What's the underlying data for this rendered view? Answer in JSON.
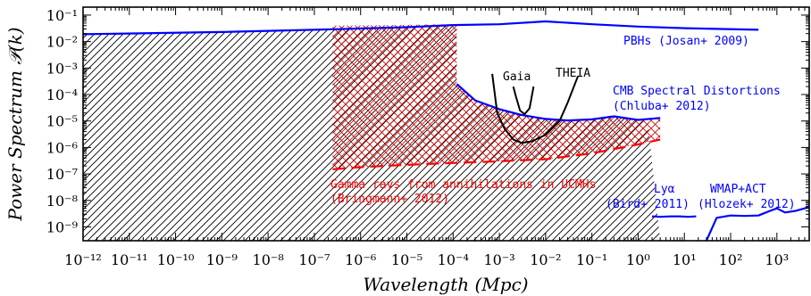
{
  "chart_data": {
    "type": "line",
    "title": "",
    "xlabel": "Wavelength (Mpc)",
    "ylabel": "Power Spectrum 𝒫(k)",
    "xscale": "log",
    "yscale": "log",
    "xlim": [
      1e-12,
      5000
    ],
    "ylim": [
      3e-10,
      0.2
    ],
    "grid": false,
    "x_ticks": [
      {
        "exp": -12,
        "label": "10⁻¹²"
      },
      {
        "exp": -11,
        "label": "10⁻¹¹"
      },
      {
        "exp": -10,
        "label": "10⁻¹⁰"
      },
      {
        "exp": -9,
        "label": "10⁻⁹"
      },
      {
        "exp": -8,
        "label": "10⁻⁸"
      },
      {
        "exp": -7,
        "label": "10⁻⁷"
      },
      {
        "exp": -6,
        "label": "10⁻⁶"
      },
      {
        "exp": -5,
        "label": "10⁻⁵"
      },
      {
        "exp": -4,
        "label": "10⁻⁴"
      },
      {
        "exp": -3,
        "label": "10⁻³"
      },
      {
        "exp": -2,
        "label": "10⁻²"
      },
      {
        "exp": -1,
        "label": "10⁻¹"
      },
      {
        "exp": 0,
        "label": "10⁰"
      },
      {
        "exp": 1,
        "label": "10¹"
      },
      {
        "exp": 2,
        "label": "10²"
      },
      {
        "exp": 3,
        "label": "10³"
      }
    ],
    "y_ticks": [
      {
        "exp": -1,
        "label": "10⁻¹"
      },
      {
        "exp": -2,
        "label": "10⁻²"
      },
      {
        "exp": -3,
        "label": "10⁻³"
      },
      {
        "exp": -4,
        "label": "10⁻⁴"
      },
      {
        "exp": -5,
        "label": "10⁻⁵"
      },
      {
        "exp": -6,
        "label": "10⁻⁶"
      },
      {
        "exp": -7,
        "label": "10⁻⁷"
      },
      {
        "exp": -8,
        "label": "10⁻⁸"
      },
      {
        "exp": -9,
        "label": "10⁻⁹"
      }
    ],
    "series": [
      {
        "name": "PBHs (Josan+ 2009)",
        "color": "#0000ff",
        "style": "solid",
        "x": [
          1e-12,
          1e-09,
          1e-07,
          1e-05,
          0.0001,
          0.001,
          0.01,
          0.1,
          1,
          10,
          400
        ],
        "y": [
          0.019,
          0.023,
          0.028,
          0.035,
          0.042,
          0.045,
          0.058,
          0.045,
          0.037,
          0.032,
          0.028
        ]
      },
      {
        "name": "CMB Spectral Distortions (Chluba+ 2012)",
        "color": "#0000ff",
        "style": "solid",
        "x": [
          0.00012,
          0.0003,
          0.001,
          0.003,
          0.01,
          0.03,
          0.1,
          0.3,
          1,
          3
        ],
        "y": [
          0.00025,
          6e-05,
          2.8e-05,
          1.7e-05,
          1.2e-05,
          1.05e-05,
          1.15e-05,
          1.5e-05,
          1.1e-05,
          1.3e-05
        ]
      },
      {
        "name": "Gamma rays from annihilations in UCMHs (Bringmann+ 2012)",
        "color": "#ff0000",
        "style": "dashed",
        "x": [
          2.5e-07,
          1e-06,
          1e-05,
          0.0001,
          0.001,
          0.01,
          0.1,
          1,
          3
        ],
        "y": [
          1.5e-07,
          1.8e-07,
          2.2e-07,
          2.6e-07,
          3e-07,
          3.6e-07,
          6e-07,
          1.3e-06,
          2e-06
        ]
      },
      {
        "name": "Gaia",
        "color": "#000000",
        "style": "solid",
        "x": [
          0.002,
          0.0023,
          0.0028,
          0.0035,
          0.0045,
          0.0055
        ],
        "y": [
          0.0002,
          8e-05,
          2.5e-05,
          1.8e-05,
          3e-05,
          0.0002
        ]
      },
      {
        "name": "THEIA",
        "color": "#000000",
        "style": "solid",
        "x": [
          0.0007,
          0.0009,
          0.0013,
          0.002,
          0.003,
          0.005,
          0.01,
          0.02,
          0.03,
          0.05
        ],
        "y": [
          0.0006,
          2e-05,
          5e-06,
          2e-06,
          1.5e-06,
          1.7e-06,
          3e-06,
          1e-05,
          5e-05,
          0.0005
        ]
      },
      {
        "name": "Lyα (Bird+ 2011)",
        "color": "#0000ff",
        "style": "solid",
        "x": [
          2,
          3,
          5,
          8,
          12,
          18
        ],
        "y": [
          2.5e-09,
          2.4e-09,
          2.5e-09,
          2.5e-09,
          2.4e-09,
          2.5e-09
        ]
      },
      {
        "name": "WMAP+ACT (Hlozek+ 2012)",
        "color": "#0000ff",
        "style": "solid",
        "x": [
          30,
          50,
          100,
          200,
          400,
          700,
          1000,
          1500,
          2500,
          4000,
          5000
        ],
        "y": [
          3e-10,
          2.2e-09,
          2.7e-09,
          2.6e-09,
          2.7e-09,
          4e-09,
          5e-09,
          3.5e-09,
          4e-09,
          5e-09,
          6e-09
        ]
      }
    ],
    "annotations": [
      {
        "text": "PBHs (Josan+ 2009)",
        "color": "#0000ff"
      },
      {
        "text": "CMB Spectral Distortions",
        "color": "#0000ff"
      },
      {
        "text": "(Chluba+ 2012)",
        "color": "#0000ff"
      },
      {
        "text": "Gaia",
        "color": "#000000"
      },
      {
        "text": "THEIA",
        "color": "#000000"
      },
      {
        "text": "Gamma rays from annihilations in UCMHs",
        "color": "#ff0000"
      },
      {
        "text": "(Bringmann+ 2012)",
        "color": "#ff0000"
      },
      {
        "text": "Lyα",
        "color": "#0000ff"
      },
      {
        "text": "(Bird+ 2011)",
        "color": "#0000ff"
      },
      {
        "text": "WMAP+ACT",
        "color": "#0000ff"
      },
      {
        "text": "(Hlozek+ 2012)",
        "color": "#0000ff"
      }
    ]
  }
}
